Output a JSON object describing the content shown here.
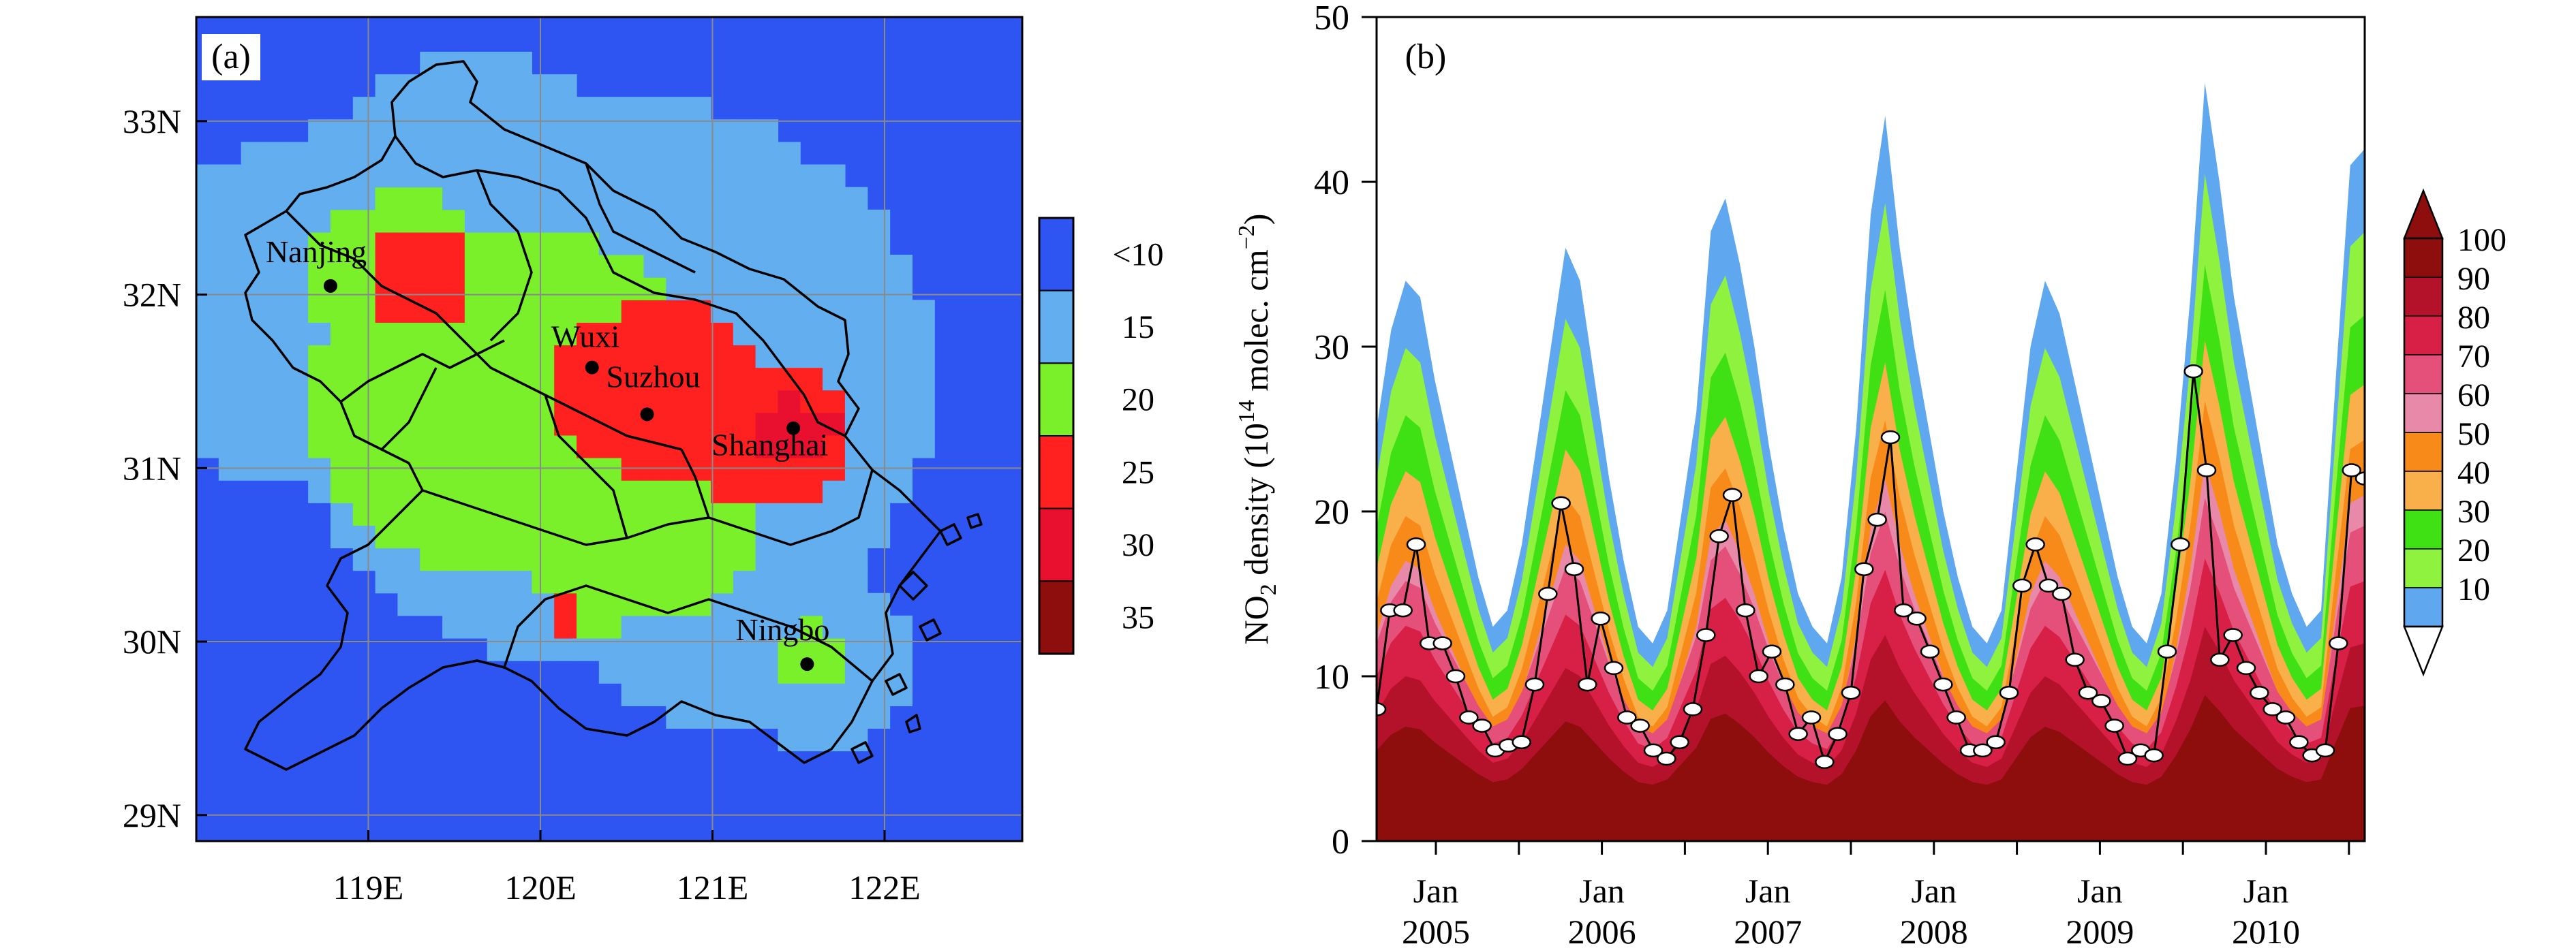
{
  "panel_a": {
    "label": "(a)",
    "y_ticks": [
      "33N",
      "32N",
      "31N",
      "30N",
      "29N"
    ],
    "x_ticks": [
      "119E",
      "120E",
      "121E",
      "122E"
    ],
    "colorbar_labels": [
      "<10",
      "15",
      "20",
      "25",
      "30",
      "35"
    ],
    "colorbar_colors": [
      "#2e55f2",
      "#62aeef",
      "#7af02a",
      "#ff2020",
      "#e8102e",
      "#8e0d0d"
    ],
    "cities": [
      "Nanjing",
      "Wuxi",
      "Suzhou",
      "Shanghai",
      "Ningbo"
    ]
  },
  "panel_b": {
    "label": "(b)",
    "ylabel_pre": "NO",
    "ylabel_sub": "2",
    "ylabel_mid": " density (10",
    "ylabel_sup": "14",
    "ylabel_post": " molec. cm",
    "ylabel_sup2": "−2",
    "ylabel_end": ")",
    "colorbar_labels": [
      "100",
      "90",
      "80",
      "70",
      "60",
      "50",
      "40",
      "30",
      "20",
      "10"
    ],
    "colorbar_colors": [
      "#8e0d0d",
      "#b3122a",
      "#d81f45",
      "#e4507a",
      "#e889aa",
      "#f88a1a",
      "#f9b04a",
      "#3fe014",
      "#8ef23e",
      "#5fa8f0"
    ]
  },
  "chart_data": [
    {
      "type": "heatmap",
      "title": "(a)",
      "xlabel": "",
      "ylabel": "",
      "xlim": [
        118.0,
        122.8
      ],
      "ylim": [
        28.85,
        33.6
      ],
      "x_ticks": [
        119,
        120,
        121,
        122
      ],
      "x_tick_labels": [
        "119E",
        "120E",
        "121E",
        "122E"
      ],
      "y_ticks": [
        29,
        30,
        31,
        32,
        33
      ],
      "y_tick_labels": [
        "29N",
        "30N",
        "31N",
        "32N",
        "33N"
      ],
      "legend": {
        "labels": [
          "<10",
          "15",
          "20",
          "25",
          "30",
          "35"
        ],
        "placement": "right"
      },
      "cities": [
        {
          "name": "Nanjing",
          "lon": 118.78,
          "lat": 32.05
        },
        {
          "name": "Wuxi",
          "lon": 120.3,
          "lat": 31.58
        },
        {
          "name": "Suzhou",
          "lon": 120.62,
          "lat": 31.31
        },
        {
          "name": "Shanghai",
          "lon": 121.47,
          "lat": 31.23
        },
        {
          "name": "Ningbo",
          "lon": 121.55,
          "lat": 29.87
        }
      ]
    },
    {
      "type": "area",
      "title": "(b)",
      "xlabel": "",
      "ylabel": "NO2 density (10^14 molec. cm^-2)",
      "ylim": [
        0,
        50
      ],
      "y_ticks": [
        0,
        10,
        20,
        30,
        40,
        50
      ],
      "x_tick_labels": [
        "Jan 2005",
        "Jan 2006",
        "Jan 2007",
        "Jan 2008",
        "Jan 2009",
        "Jan 2010"
      ],
      "percentile_levels": [
        10,
        20,
        30,
        40,
        50,
        60,
        70,
        80,
        90,
        100
      ],
      "series": [
        {
          "name": "upper envelope",
          "values": [
            25,
            31,
            34,
            33,
            28,
            24,
            20,
            16,
            13,
            14,
            18,
            24,
            30,
            36,
            34,
            28,
            22,
            17,
            13,
            12,
            14,
            20,
            26,
            37,
            39,
            35,
            30,
            24,
            19,
            15,
            13,
            12,
            16,
            25,
            38,
            44,
            36,
            30,
            25,
            20,
            16,
            13,
            12,
            14,
            22,
            30,
            34,
            32,
            28,
            24,
            20,
            16,
            13,
            12,
            15,
            23,
            33,
            46,
            40,
            33,
            28,
            23,
            18,
            15,
            13,
            14,
            28,
            41,
            42
          ]
        },
        {
          "name": "monthly mean",
          "values": [
            8,
            14,
            14,
            18,
            12,
            12,
            10,
            7.5,
            7,
            5.5,
            5.8,
            6,
            9.5,
            15,
            20.5,
            16.5,
            9.5,
            13.5,
            10.5,
            7.5,
            7,
            5.5,
            5,
            6,
            8,
            12.5,
            18.5,
            21,
            14,
            10,
            11.5,
            9.5,
            6.5,
            7.5,
            4.8,
            6.5,
            9,
            16.5,
            19.5,
            24.5,
            14,
            13.5,
            11.5,
            9.5,
            7.5,
            5.5,
            5.5,
            6,
            9,
            15.5,
            18,
            15.5,
            15,
            11,
            9,
            8.5,
            7,
            5,
            5.5,
            5.2,
            11.5,
            18,
            28.5,
            22.5,
            11,
            12.5,
            10.5,
            9,
            8,
            7.5,
            6,
            5.2,
            5.5,
            12,
            22.5,
            22
          ]
        }
      ]
    }
  ]
}
